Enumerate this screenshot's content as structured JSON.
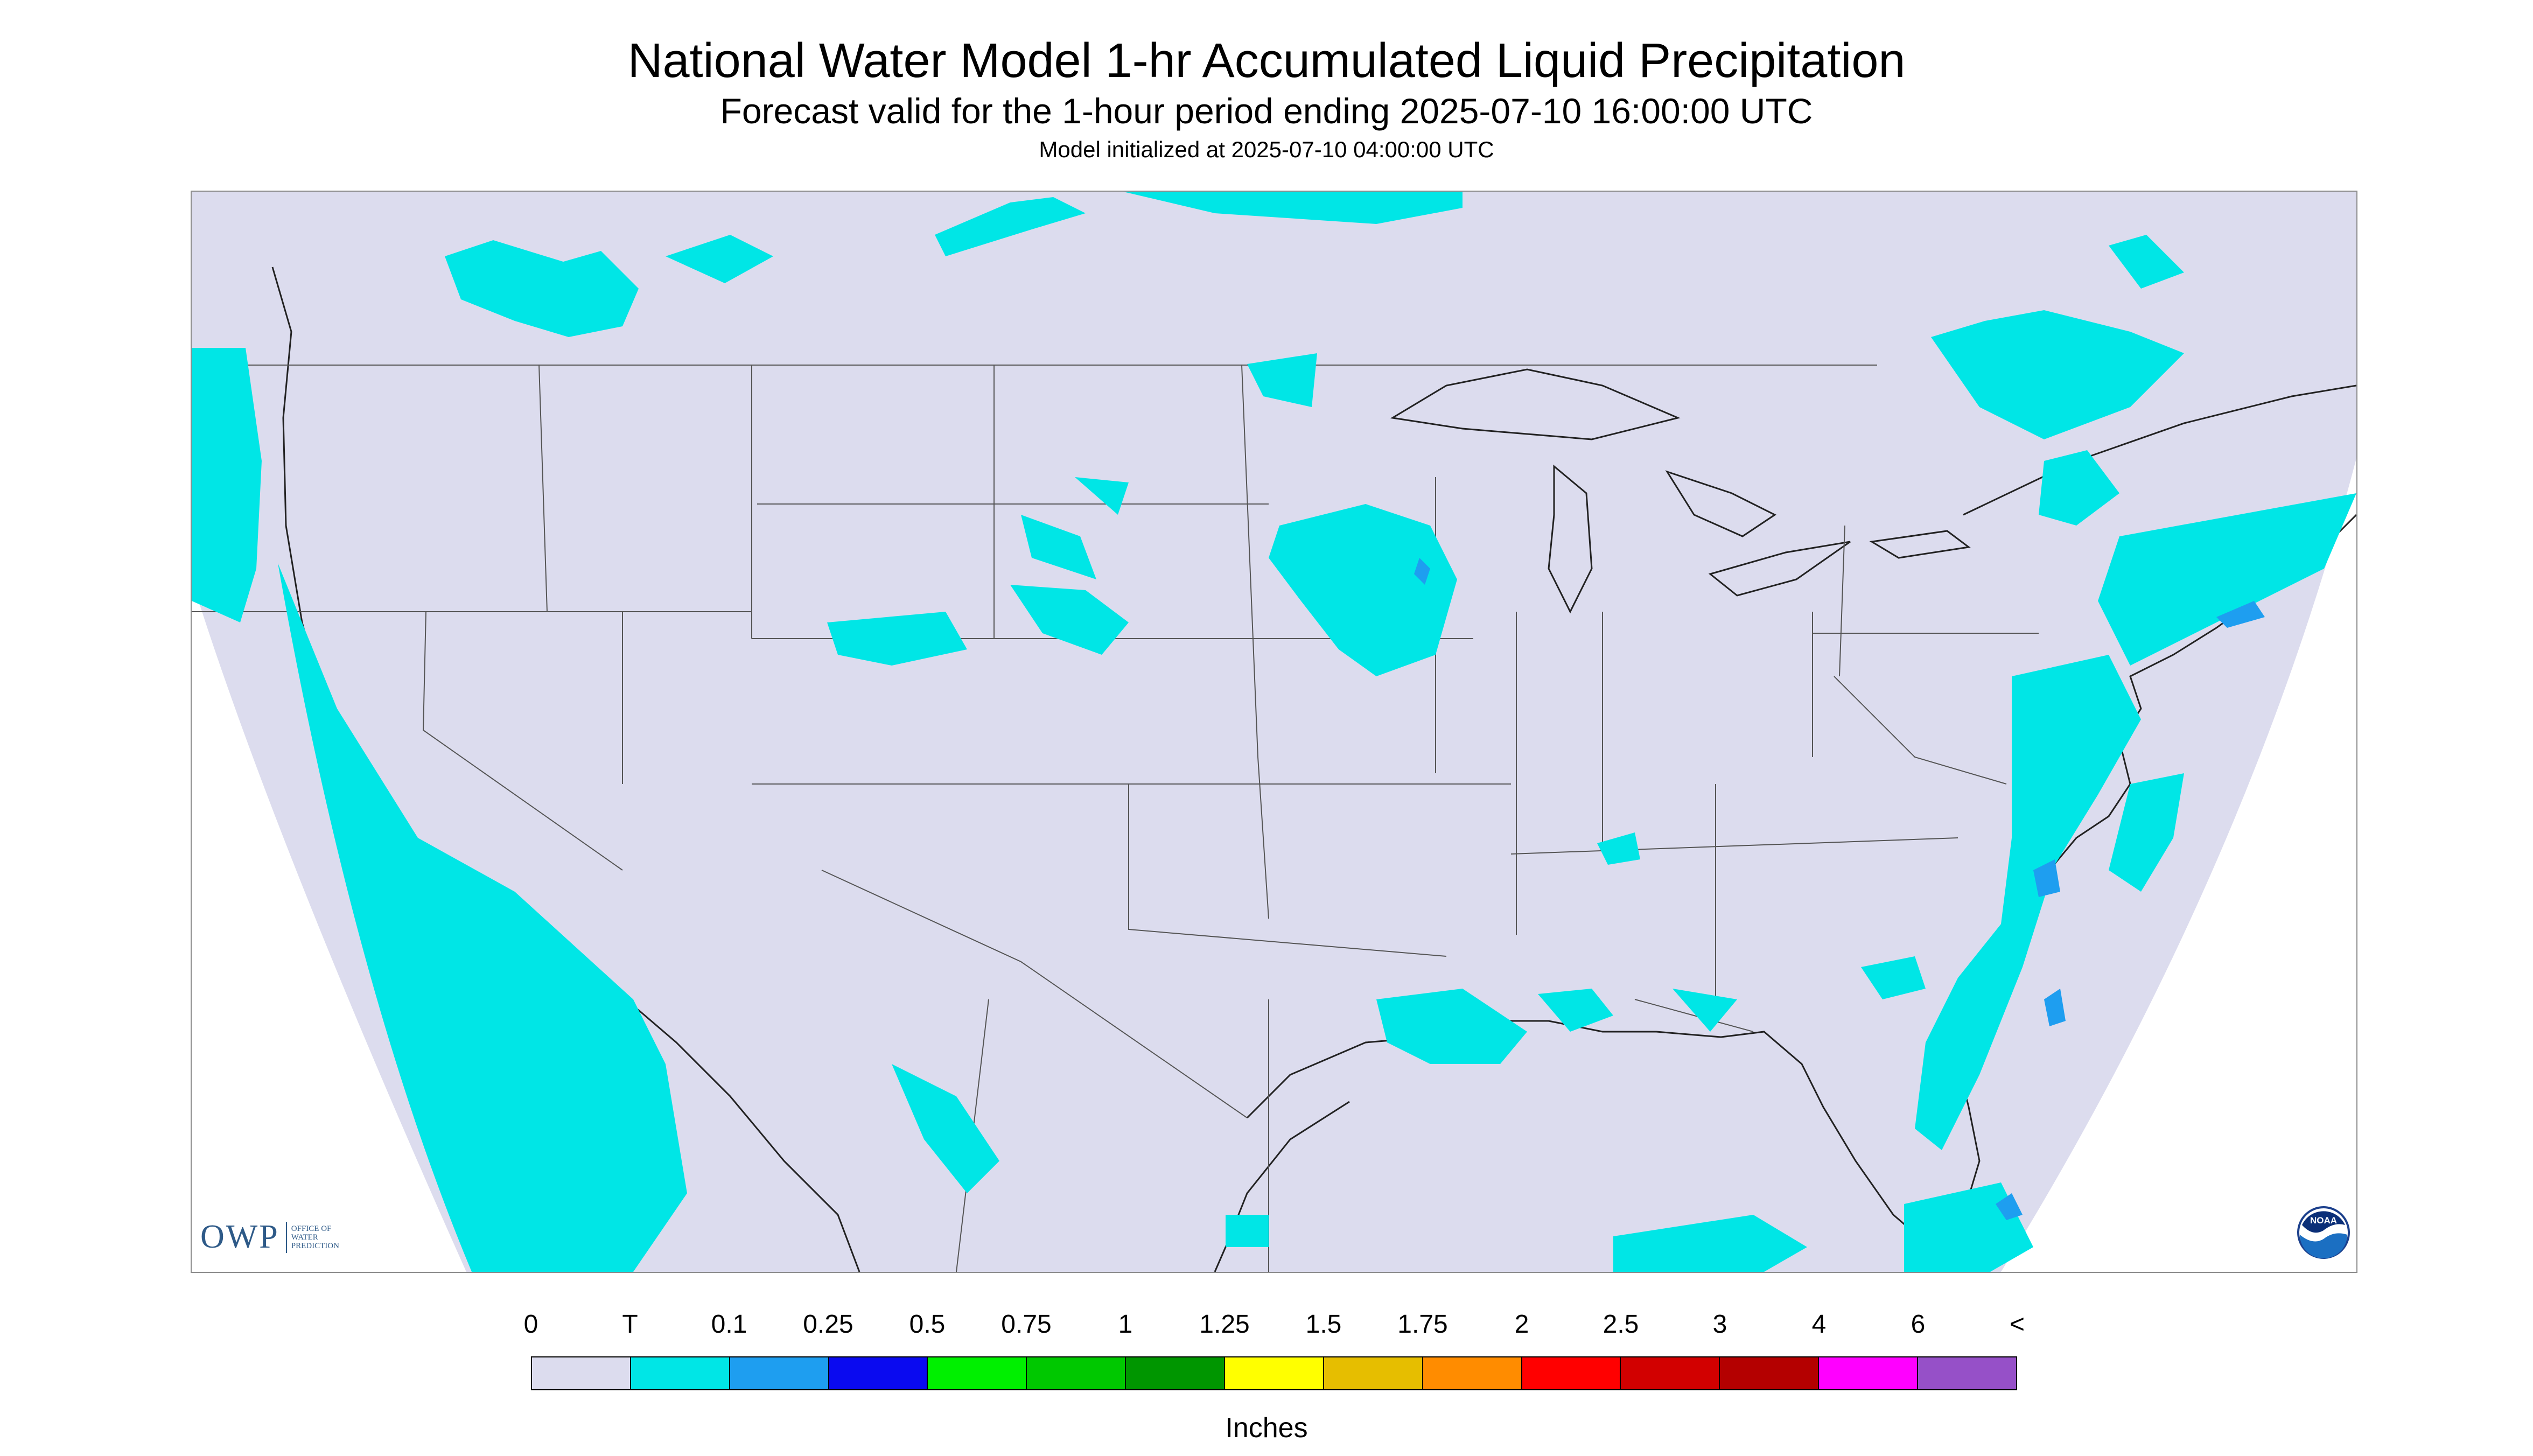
{
  "header": {
    "title": "National Water Model 1-hr Accumulated Liquid Precipitation",
    "subtitle": "Forecast valid for the 1-hour period ending 2025-07-10 16:00:00 UTC",
    "init_line": "Model initialized at 2025-07-10 04:00:00 UTC"
  },
  "map": {
    "region": "CONUS",
    "background_color": "#dcdcee",
    "precip_colors": {
      "trace": "#00e6e6",
      "light": "#1e9ef0",
      "moderate": "#0a0af0",
      "green": "#00f000"
    }
  },
  "logos": {
    "owp": {
      "main": "OWP",
      "line1": "OFFICE OF",
      "line2": "WATER",
      "line3": "PREDICTION"
    },
    "noaa": {
      "text": "NOAA",
      "icon": "noaa-emblem-icon"
    }
  },
  "legend": {
    "labels": [
      "0",
      "T",
      "0.1",
      "0.25",
      "0.5",
      "0.75",
      "1",
      "1.25",
      "1.5",
      "1.75",
      "2",
      "2.5",
      "3",
      "4",
      "6",
      "<"
    ],
    "colors": [
      "#dcdcee",
      "#00e6e6",
      "#1e9ef0",
      "#0a0af0",
      "#00f000",
      "#00c800",
      "#009600",
      "#ffff00",
      "#e6be00",
      "#ff8c00",
      "#ff0000",
      "#d20000",
      "#b40000",
      "#ff00ff",
      "#9650c8"
    ],
    "units": "Inches"
  }
}
